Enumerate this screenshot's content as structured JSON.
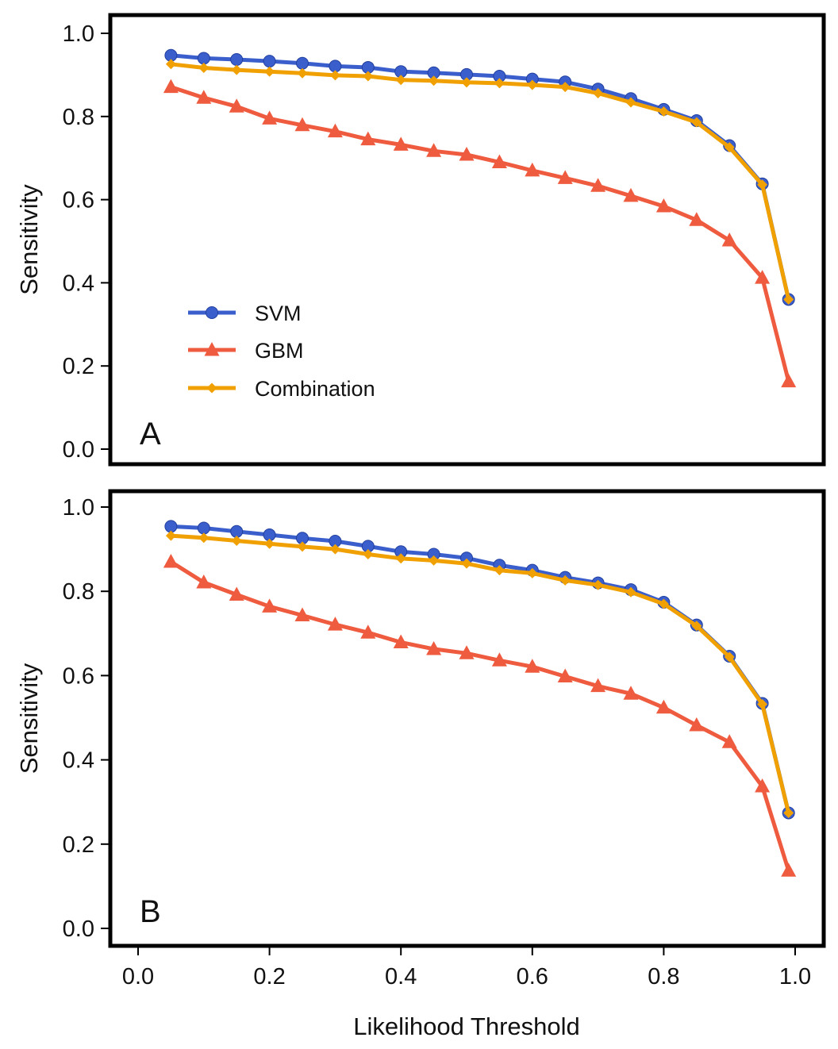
{
  "chart_data": [
    {
      "type": "line",
      "panel_label": "A",
      "xlabel": "",
      "ylabel": "Sensitivity",
      "xlim": [
        0.0,
        1.0
      ],
      "ylim": [
        0.0,
        1.0
      ],
      "yticks": [
        "0.0",
        "0.2",
        "0.4",
        "0.6",
        "0.8",
        "1.0"
      ],
      "x": [
        0.05,
        0.1,
        0.15,
        0.2,
        0.25,
        0.3,
        0.35,
        0.4,
        0.45,
        0.5,
        0.55,
        0.6,
        0.65,
        0.7,
        0.75,
        0.8,
        0.85,
        0.9,
        0.95,
        0.99
      ],
      "series": [
        {
          "name": "SVM",
          "color": "#3a5fcd",
          "marker": "circle",
          "values": [
            0.947,
            0.94,
            0.937,
            0.933,
            0.928,
            0.921,
            0.918,
            0.908,
            0.905,
            0.901,
            0.897,
            0.89,
            0.883,
            0.866,
            0.843,
            0.817,
            0.79,
            0.73,
            0.638,
            0.36
          ]
        },
        {
          "name": "GBM",
          "color": "#ef5b3f",
          "marker": "triangle",
          "values": [
            0.871,
            0.845,
            0.824,
            0.795,
            0.779,
            0.764,
            0.745,
            0.732,
            0.717,
            0.708,
            0.69,
            0.67,
            0.652,
            0.633,
            0.609,
            0.584,
            0.551,
            0.502,
            0.412,
            0.163
          ]
        },
        {
          "name": "Combination",
          "color": "#f0a000",
          "marker": "diamond",
          "values": [
            0.926,
            0.917,
            0.912,
            0.908,
            0.904,
            0.899,
            0.897,
            0.888,
            0.886,
            0.882,
            0.88,
            0.876,
            0.871,
            0.856,
            0.834,
            0.812,
            0.786,
            0.726,
            0.636,
            0.36
          ]
        }
      ],
      "legend_position": "bottom-left"
    },
    {
      "type": "line",
      "panel_label": "B",
      "xlabel": "Likelihood Threshold",
      "ylabel": "Sensitivity",
      "xlim": [
        0.0,
        1.0
      ],
      "ylim": [
        0.0,
        1.0
      ],
      "xticks": [
        "0.0",
        "0.2",
        "0.4",
        "0.6",
        "0.8",
        "1.0"
      ],
      "yticks": [
        "0.0",
        "0.2",
        "0.4",
        "0.6",
        "0.8",
        "1.0"
      ],
      "x": [
        0.05,
        0.1,
        0.15,
        0.2,
        0.25,
        0.3,
        0.35,
        0.4,
        0.45,
        0.5,
        0.55,
        0.6,
        0.65,
        0.7,
        0.75,
        0.8,
        0.85,
        0.9,
        0.95,
        0.99
      ],
      "series": [
        {
          "name": "SVM",
          "color": "#3a5fcd",
          "marker": "circle",
          "values": [
            0.954,
            0.95,
            0.942,
            0.934,
            0.926,
            0.919,
            0.907,
            0.894,
            0.888,
            0.879,
            0.862,
            0.85,
            0.833,
            0.82,
            0.804,
            0.774,
            0.72,
            0.646,
            0.534,
            0.274
          ]
        },
        {
          "name": "GBM",
          "color": "#ef5b3f",
          "marker": "triangle",
          "values": [
            0.87,
            0.821,
            0.792,
            0.764,
            0.743,
            0.721,
            0.702,
            0.679,
            0.663,
            0.653,
            0.636,
            0.621,
            0.598,
            0.575,
            0.557,
            0.524,
            0.482,
            0.442,
            0.337,
            0.137
          ]
        },
        {
          "name": "Combination",
          "color": "#f0a000",
          "marker": "diamond",
          "values": [
            0.932,
            0.927,
            0.92,
            0.913,
            0.906,
            0.9,
            0.888,
            0.878,
            0.873,
            0.866,
            0.85,
            0.843,
            0.826,
            0.815,
            0.798,
            0.77,
            0.718,
            0.644,
            0.532,
            0.274
          ]
        }
      ]
    }
  ]
}
